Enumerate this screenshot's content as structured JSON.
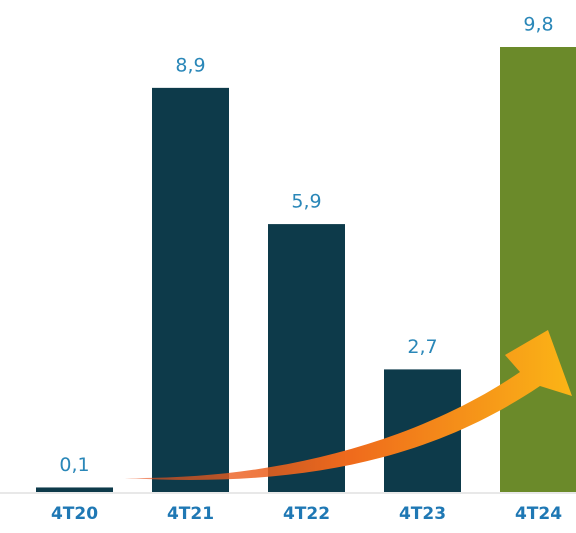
{
  "chart_data": {
    "type": "bar",
    "categories": [
      "4T20",
      "4T21",
      "4T22",
      "4T23",
      "4T24"
    ],
    "values": [
      0.1,
      8.9,
      5.9,
      2.7,
      9.8
    ],
    "value_labels": [
      "0,1",
      "8,9",
      "5,9",
      "2,7",
      "9,8"
    ],
    "colors": [
      "#0d3a4a",
      "#0d3a4a",
      "#0d3a4a",
      "#0d3a4a",
      "#6b8a2a"
    ]
  }
}
